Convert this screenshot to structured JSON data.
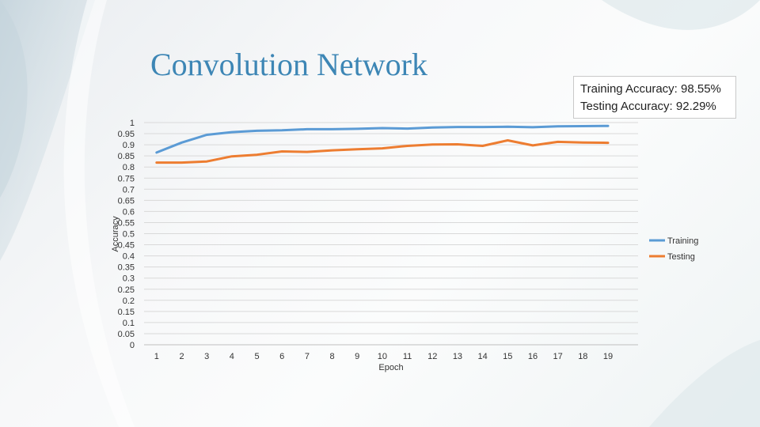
{
  "slide": {
    "title": "Convolution Network",
    "training_accuracy_text": "Training Accuracy: 98.55%",
    "testing_accuracy_text": "Testing Accuracy: 92.29%"
  },
  "chart_data": {
    "type": "line",
    "title": "",
    "xlabel": "Epoch",
    "ylabel": "Accuracy",
    "x": [
      1,
      2,
      3,
      4,
      5,
      6,
      7,
      8,
      9,
      10,
      11,
      12,
      13,
      14,
      15,
      16,
      17,
      18,
      19
    ],
    "ylim": [
      0,
      1
    ],
    "yticks": [
      "1",
      "0.95",
      "0.9",
      "0.85",
      "0.8",
      "0.75",
      "0.7",
      "0.65",
      "0.6",
      "0.55",
      "0.5",
      "0.45",
      "0.4",
      "0.35",
      "0.3",
      "0.25",
      "0.2",
      "0.15",
      "0.1",
      "0.05",
      "0"
    ],
    "ytick_values": [
      1,
      0.95,
      0.9,
      0.85,
      0.8,
      0.75,
      0.7,
      0.65,
      0.6,
      0.55,
      0.5,
      0.45,
      0.4,
      0.35,
      0.3,
      0.25,
      0.2,
      0.15,
      0.1,
      0.05,
      0
    ],
    "grid": true,
    "legend_position": "right",
    "series": [
      {
        "name": "Training",
        "color": "#5b9bd5",
        "values": [
          0.865,
          0.91,
          0.945,
          0.957,
          0.963,
          0.965,
          0.97,
          0.97,
          0.972,
          0.975,
          0.973,
          0.978,
          0.98,
          0.98,
          0.981,
          0.979,
          0.983,
          0.984,
          0.985
        ]
      },
      {
        "name": "Testing",
        "color": "#ed7d31",
        "values": [
          0.82,
          0.82,
          0.825,
          0.848,
          0.855,
          0.87,
          0.868,
          0.875,
          0.88,
          0.884,
          0.895,
          0.901,
          0.902,
          0.895,
          0.92,
          0.897,
          0.913,
          0.91,
          0.909
        ]
      }
    ]
  }
}
